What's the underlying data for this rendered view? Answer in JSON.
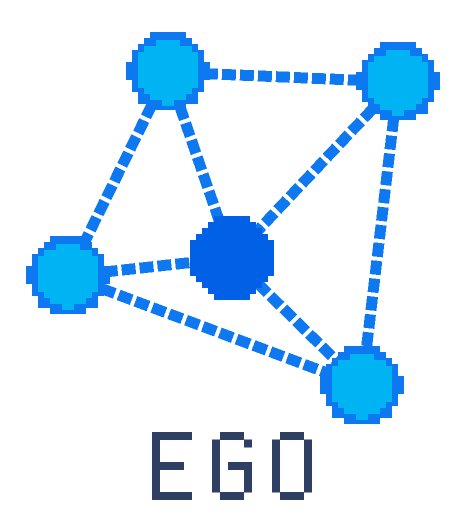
{
  "logo": {
    "wordmark": "EGO",
    "colors": {
      "edge": "#0d78f0",
      "node_fill": "#00b4f4",
      "node_outline": "#0d78f0",
      "center_node": "#0060e6",
      "wordmark": "#2e3f63"
    },
    "style": "pixel-art",
    "graph": {
      "nodes": [
        "top-left",
        "top-right",
        "left",
        "center",
        "bottom-right"
      ],
      "edges": [
        [
          "top-left",
          "top-right"
        ],
        [
          "top-left",
          "left"
        ],
        [
          "top-left",
          "center"
        ],
        [
          "top-right",
          "center"
        ],
        [
          "top-right",
          "bottom-right"
        ],
        [
          "left",
          "center"
        ],
        [
          "left",
          "bottom-right"
        ],
        [
          "center",
          "bottom-right"
        ]
      ]
    }
  }
}
